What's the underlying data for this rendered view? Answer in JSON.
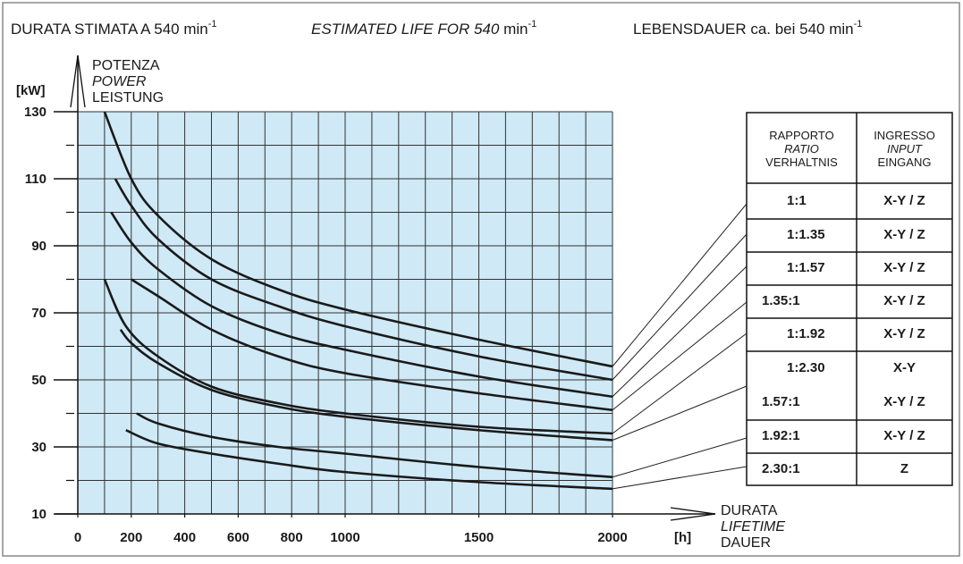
{
  "chart_data": {
    "type": "line",
    "title": [
      {
        "text": "DURATA STIMATA A 540 min",
        "sup": "-1"
      },
      {
        "italic": "ESTIMATED LIFE FOR 540",
        "text": " min",
        "sup": "-1"
      },
      {
        "text": "LEBENSDAUER ca. bei 540 min",
        "sup": "-1"
      }
    ],
    "y_label": {
      "unit": "[kW]",
      "lines": [
        "POTENZA",
        "POWER",
        "LEISTUNG"
      ]
    },
    "x_label": {
      "unit": "[h]",
      "lines": [
        "DURATA",
        "LIFETIME",
        "DAUER"
      ]
    },
    "xlim": [
      0,
      2000
    ],
    "ylim": [
      10,
      130
    ],
    "xticks": [
      0,
      200,
      400,
      600,
      800,
      1000,
      1500,
      2000
    ],
    "yticks": [
      10,
      30,
      50,
      70,
      90,
      110,
      130
    ],
    "yminor_ticks": [
      20,
      40,
      60,
      80,
      100,
      120
    ],
    "xgrid": [
      0,
      100,
      200,
      300,
      400,
      500,
      600,
      700,
      800,
      900,
      1000,
      1100,
      1200,
      1300,
      1400,
      1500,
      1600,
      1700,
      1800,
      1900,
      2000
    ],
    "ygrid": [
      10,
      20,
      30,
      40,
      50,
      60,
      70,
      80,
      90,
      100,
      110,
      120,
      130
    ],
    "plot_background": "#cfe9f6",
    "color": "#1a1a1a",
    "series": [
      {
        "x": [
          100,
          200,
          300,
          500,
          750,
          1000,
          1500,
          2000
        ],
        "values": [
          130,
          110,
          99,
          86,
          77,
          71,
          62,
          54
        ]
      },
      {
        "x": [
          140,
          200,
          300,
          500,
          750,
          1000,
          1500,
          2000
        ],
        "values": [
          110,
          102,
          92,
          80,
          72,
          66,
          57,
          50
        ]
      },
      {
        "x": [
          125,
          200,
          300,
          500,
          750,
          1000,
          1500,
          2000
        ],
        "values": [
          100,
          91,
          83,
          72,
          64,
          59,
          51,
          45
        ]
      },
      {
        "x": [
          200,
          300,
          500,
          750,
          1000,
          1500,
          2000
        ],
        "values": [
          80,
          75,
          65,
          57,
          52,
          46,
          41
        ]
      },
      {
        "x": [
          100,
          180,
          300,
          500,
          750,
          1000,
          1500,
          2000
        ],
        "values": [
          80,
          66,
          57,
          48,
          43,
          40,
          36,
          34
        ]
      },
      {
        "x": [
          160,
          200,
          300,
          500,
          750,
          1000,
          1500,
          2000
        ],
        "values": [
          65,
          61,
          55,
          47,
          42,
          39,
          35,
          32
        ]
      },
      {
        "x": [
          220,
          300,
          500,
          750,
          1000,
          1500,
          2000
        ],
        "values": [
          40,
          37,
          33,
          30,
          28,
          24,
          21
        ]
      },
      {
        "x": [
          180,
          300,
          500,
          750,
          1000,
          1500,
          2000
        ],
        "values": [
          35,
          31,
          28,
          25,
          22.5,
          19.5,
          17.5
        ]
      }
    ]
  },
  "table": {
    "headers": [
      [
        "RAPPORTO",
        "RATIO",
        "VERHALTNIS"
      ],
      [
        "INGRESSO",
        "INPUT",
        "EINGANG"
      ]
    ],
    "rows": [
      [
        "1:1",
        "X-Y / Z"
      ],
      [
        "1:1.35",
        "X-Y / Z"
      ],
      [
        "1:1.57",
        "X-Y / Z"
      ],
      [
        "1.35:1",
        "X-Y / Z"
      ],
      [
        "1:1.92",
        "X-Y / Z"
      ],
      [
        "1:2.30",
        "X-Y"
      ],
      [
        "1.57:1",
        "X-Y / Z"
      ],
      [
        "1.92:1",
        "X-Y / Z"
      ],
      [
        "2.30:1",
        "Z"
      ]
    ]
  }
}
